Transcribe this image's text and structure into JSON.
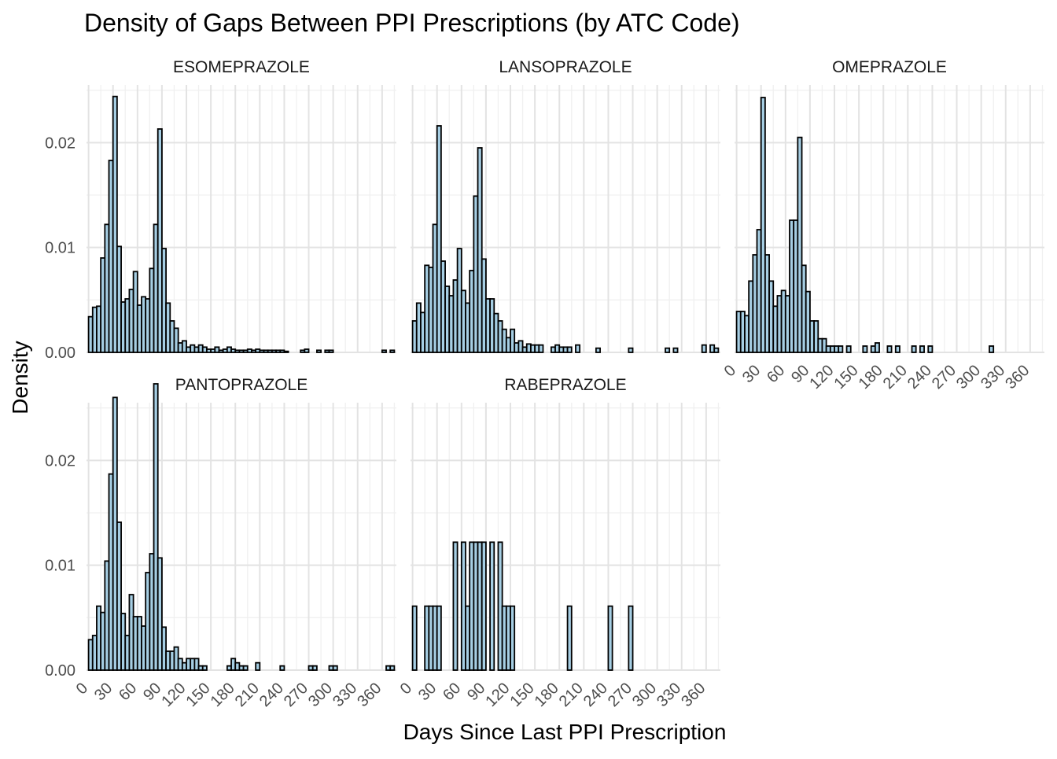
{
  "chart_data": {
    "type": "bar",
    "title": "Density of Gaps Between PPI Prescriptions (by ATC Code)",
    "xlabel": "Days Since Last PPI Prescription",
    "ylabel": "Density",
    "bin_width_days": 5,
    "x_range": [
      -2.5,
      377.5
    ],
    "ylim": [
      0,
      0.0255
    ],
    "x_ticks": [
      0,
      30,
      60,
      90,
      120,
      150,
      180,
      210,
      240,
      270,
      300,
      330,
      360
    ],
    "x_tick_labels": [
      "0",
      "30",
      "60",
      "90",
      "120",
      "150",
      "180",
      "210",
      "240",
      "270",
      "300",
      "330",
      "360"
    ],
    "y_ticks": [
      0,
      0.01,
      0.02
    ],
    "y_tick_labels": [
      "0.00",
      "0.01",
      "0.02"
    ],
    "grid": "on",
    "bar_fill": "#a6cee3",
    "bar_stroke": "#000000",
    "panels": [
      {
        "name": "ESOMEPRAZOLE",
        "bin_starts": [
          0,
          5,
          10,
          15,
          20,
          25,
          30,
          35,
          40,
          45,
          50,
          55,
          60,
          65,
          70,
          75,
          80,
          85,
          90,
          95,
          100,
          105,
          110,
          115,
          120,
          125,
          130,
          135,
          140,
          145,
          150,
          155,
          160,
          165,
          170,
          175,
          180,
          185,
          190,
          195,
          200,
          205,
          210,
          215,
          220,
          225,
          230,
          235,
          240,
          245,
          250,
          255,
          260,
          265,
          270,
          275,
          280,
          285,
          290,
          295,
          300,
          305,
          310,
          315,
          320,
          325,
          330,
          335,
          340,
          345,
          350,
          355,
          360,
          365,
          370
        ],
        "values": [
          0.0034,
          0.0043,
          0.0044,
          0.009,
          0.0122,
          0.0183,
          0.0244,
          0.0101,
          0.0048,
          0.0051,
          0.006,
          0.0077,
          0.0045,
          0.0053,
          0.0051,
          0.008,
          0.0122,
          0.0213,
          0.0099,
          0.0047,
          0.003,
          0.0023,
          0.0009,
          0.0011,
          0.0005,
          0.0007,
          0.0005,
          0.0007,
          0.0005,
          0.0003,
          0.0003,
          0.0005,
          0.0002,
          0.0003,
          0.0005,
          0.0003,
          0.0002,
          0.0002,
          0.0002,
          0.0003,
          0.0002,
          0.0003,
          0.0002,
          0.0002,
          0.0002,
          0.0002,
          0.0002,
          0.0002,
          0.0001,
          0,
          0,
          0,
          0.0002,
          0.0003,
          0,
          0,
          0.0002,
          0,
          0.0002,
          0.0002,
          0,
          0,
          0,
          0,
          0,
          0,
          0,
          0,
          0,
          0,
          0,
          0,
          0.0002,
          0,
          0.0002
        ]
      },
      {
        "name": "LANSOPRAZOLE",
        "bin_starts": [
          0,
          5,
          10,
          15,
          20,
          25,
          30,
          35,
          40,
          45,
          50,
          55,
          60,
          65,
          70,
          75,
          80,
          85,
          90,
          95,
          100,
          105,
          110,
          115,
          120,
          125,
          130,
          135,
          140,
          145,
          150,
          155,
          160,
          165,
          170,
          175,
          180,
          185,
          190,
          195,
          200,
          205,
          210,
          215,
          220,
          225,
          230,
          235,
          240,
          245,
          250,
          255,
          260,
          265,
          270,
          275,
          280,
          285,
          290,
          295,
          300,
          305,
          310,
          315,
          320,
          325,
          330,
          335,
          340,
          345,
          350,
          355,
          360,
          365,
          370
        ],
        "values": [
          0.003,
          0.0047,
          0.0038,
          0.0083,
          0.0081,
          0.0122,
          0.0216,
          0.0087,
          0.0063,
          0.0054,
          0.0069,
          0.0099,
          0.0059,
          0.0047,
          0.0078,
          0.0149,
          0.0195,
          0.0089,
          0.0051,
          0.0051,
          0.0037,
          0.003,
          0.0022,
          0.0014,
          0.0022,
          0.0009,
          0.0011,
          0.0005,
          0.0008,
          0.0007,
          0.0007,
          0.0007,
          0,
          0,
          0.0005,
          0.0007,
          0.0005,
          0.0005,
          0.0005,
          0,
          0.0007,
          0,
          0,
          0,
          0,
          0.0004,
          0,
          0,
          0,
          0,
          0,
          0,
          0,
          0.0004,
          0,
          0,
          0,
          0,
          0,
          0,
          0,
          0,
          0.0004,
          0,
          0.0004,
          0,
          0,
          0,
          0,
          0,
          0,
          0.0007,
          0,
          0.0007,
          0.0004
        ]
      },
      {
        "name": "OMEPRAZOLE",
        "bin_starts": [
          0,
          5,
          10,
          15,
          20,
          25,
          30,
          35,
          40,
          45,
          50,
          55,
          60,
          65,
          70,
          75,
          80,
          85,
          90,
          95,
          100,
          105,
          110,
          115,
          120,
          125,
          130,
          135,
          140,
          145,
          150,
          155,
          160,
          165,
          170,
          175,
          180,
          185,
          190,
          195,
          200,
          205,
          210,
          215,
          220,
          225,
          230,
          235,
          240,
          245,
          250,
          255,
          260,
          265,
          270,
          275,
          280,
          285,
          290,
          295,
          300,
          305,
          310,
          315,
          320,
          325,
          330,
          335,
          340,
          345,
          350,
          355,
          360,
          365,
          370
        ],
        "values": [
          0.0039,
          0.0039,
          0.0035,
          0.0068,
          0.0093,
          0.0117,
          0.0243,
          0.0093,
          0.0068,
          0.0044,
          0.0054,
          0.0059,
          0.0054,
          0.0126,
          0.0126,
          0.0205,
          0.0083,
          0.0058,
          0.003,
          0.003,
          0.0013,
          0.0013,
          0.0006,
          0.0006,
          0.0006,
          0.0006,
          0,
          0.0006,
          0,
          0,
          0,
          0.0006,
          0,
          0.0006,
          0.0009,
          0,
          0,
          0.0006,
          0,
          0.0006,
          0,
          0,
          0,
          0.0006,
          0,
          0.0006,
          0,
          0.0006,
          0,
          0,
          0,
          0,
          0,
          0,
          0,
          0,
          0,
          0,
          0,
          0,
          0,
          0,
          0.0006,
          0,
          0,
          0,
          0,
          0,
          0,
          0,
          0,
          0,
          0,
          0,
          0
        ]
      },
      {
        "name": "PANTOPRAZOLE",
        "bin_starts": [
          0,
          5,
          10,
          15,
          20,
          25,
          30,
          35,
          40,
          45,
          50,
          55,
          60,
          65,
          70,
          75,
          80,
          85,
          90,
          95,
          100,
          105,
          110,
          115,
          120,
          125,
          130,
          135,
          140,
          145,
          150,
          155,
          160,
          165,
          170,
          175,
          180,
          185,
          190,
          195,
          200,
          205,
          210,
          215,
          220,
          225,
          230,
          235,
          240,
          245,
          250,
          255,
          260,
          265,
          270,
          275,
          280,
          285,
          290,
          295,
          300,
          305,
          310,
          315,
          320,
          325,
          330,
          335,
          340,
          345,
          350,
          355,
          360,
          365,
          370
        ],
        "values": [
          0.0029,
          0.0033,
          0.0061,
          0.0055,
          0.0104,
          0.0187,
          0.026,
          0.0141,
          0.0054,
          0.0033,
          0.0072,
          0.0051,
          0.0051,
          0.0042,
          0.0093,
          0.0111,
          0.0273,
          0.0107,
          0.0041,
          0.0018,
          0.0018,
          0.0022,
          0.0011,
          0.0007,
          0.0011,
          0.0011,
          0.0011,
          0.0004,
          0.0004,
          0,
          0,
          0,
          0,
          0,
          0.0004,
          0.0011,
          0.0007,
          0.0004,
          0.0004,
          0,
          0,
          0.0007,
          0,
          0,
          0,
          0,
          0,
          0.0004,
          0,
          0,
          0,
          0,
          0,
          0,
          0.0004,
          0.0004,
          0,
          0,
          0,
          0.0004,
          0.0004,
          0,
          0,
          0,
          0,
          0,
          0,
          0,
          0,
          0,
          0,
          0,
          0,
          0.0004,
          0.0004
        ]
      },
      {
        "name": "RABEPRAZOLE",
        "bin_starts": [
          0,
          5,
          10,
          15,
          20,
          25,
          30,
          35,
          40,
          45,
          50,
          55,
          60,
          65,
          70,
          75,
          80,
          85,
          90,
          95,
          100,
          105,
          110,
          115,
          120,
          125,
          130,
          135,
          140,
          145,
          150,
          155,
          160,
          165,
          170,
          175,
          180,
          185,
          190,
          195,
          200,
          205,
          210,
          215,
          220,
          225,
          230,
          235,
          240,
          245,
          250,
          255,
          260,
          265,
          270,
          275,
          280,
          285,
          290,
          295,
          300,
          305,
          310,
          315,
          320,
          325,
          330,
          335,
          340,
          345,
          350,
          355,
          360,
          365,
          370
        ],
        "values": [
          0.0061,
          0,
          0,
          0.0061,
          0.0061,
          0.0061,
          0.0061,
          0,
          0,
          0,
          0.0122,
          0,
          0.0122,
          0.0061,
          0.0122,
          0.0122,
          0.0122,
          0.0122,
          0,
          0.0122,
          0,
          0.0122,
          0.0061,
          0.0061,
          0.0061,
          0,
          0,
          0,
          0,
          0,
          0,
          0,
          0,
          0,
          0,
          0,
          0,
          0,
          0.0061,
          0,
          0,
          0,
          0,
          0,
          0,
          0,
          0,
          0,
          0.0061,
          0,
          0,
          0,
          0,
          0.0061,
          0,
          0,
          0,
          0,
          0,
          0,
          0,
          0,
          0,
          0,
          0,
          0,
          0,
          0,
          0,
          0,
          0,
          0,
          0,
          0,
          0
        ]
      }
    ]
  }
}
